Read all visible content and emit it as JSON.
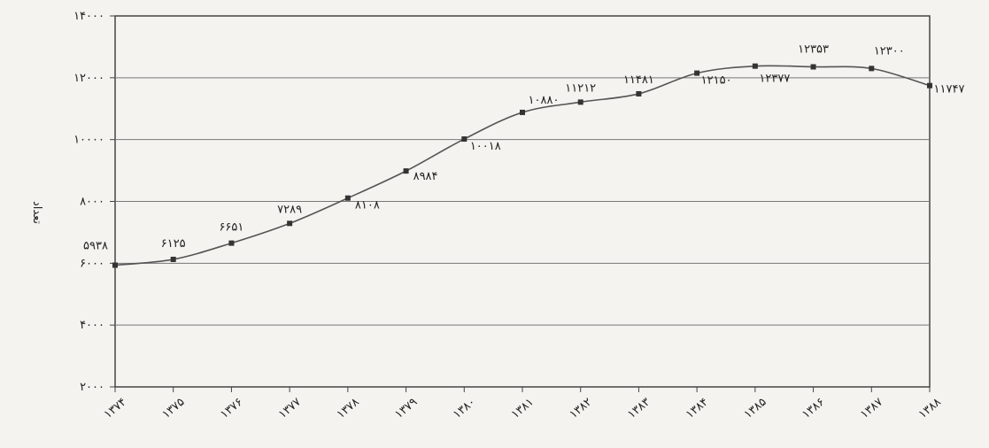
{
  "chart_data": {
    "type": "line",
    "title": "",
    "xlabel": "",
    "ylabel": "تعداد",
    "ylim": [
      2000,
      14000
    ],
    "yticks": [
      {
        "v": 2000,
        "label": "۲۰۰۰"
      },
      {
        "v": 4000,
        "label": "۴۰۰۰"
      },
      {
        "v": 6000,
        "label": "۶۰۰۰"
      },
      {
        "v": 8000,
        "label": "۸۰۰۰"
      },
      {
        "v": 10000,
        "label": "۱۰۰۰۰"
      },
      {
        "v": 12000,
        "label": "۱۲۰۰۰"
      },
      {
        "v": 14000,
        "label": "۱۴۰۰۰"
      }
    ],
    "grid": true,
    "line_color": "#555555",
    "categories": [
      "۱۳۷۴",
      "۱۳۷۵",
      "۱۳۷۶",
      "۱۳۷۷",
      "۱۳۷۸",
      "۱۳۷۹",
      "۱۳۸۰",
      "۱۳۸۱",
      "۱۳۸۲",
      "۱۳۸۳",
      "۱۳۸۴",
      "۱۳۸۵",
      "۱۳۸۶",
      "۱۳۸۷",
      "۱۳۸۸"
    ],
    "values": [
      5938,
      6125,
      6651,
      7289,
      8108,
      8984,
      10018,
      10880,
      11212,
      11481,
      12150,
      12377,
      12353,
      12300,
      11747
    ],
    "value_labels": [
      "۵۹۳۸",
      "۶۱۲۵",
      "۶۶۵۱",
      "۷۲۸۹",
      "۸۱۰۸",
      "۸۹۸۴",
      "۱۰۰۱۸",
      "۱۰۸۸۰",
      "۱۱۲۱۲",
      "۱۱۴۸۱",
      "۱۲۱۵۰",
      "۱۲۳۷۷",
      "۱۲۳۵۳",
      "۱۲۳۰۰",
      "۱۱۷۴۷"
    ]
  }
}
